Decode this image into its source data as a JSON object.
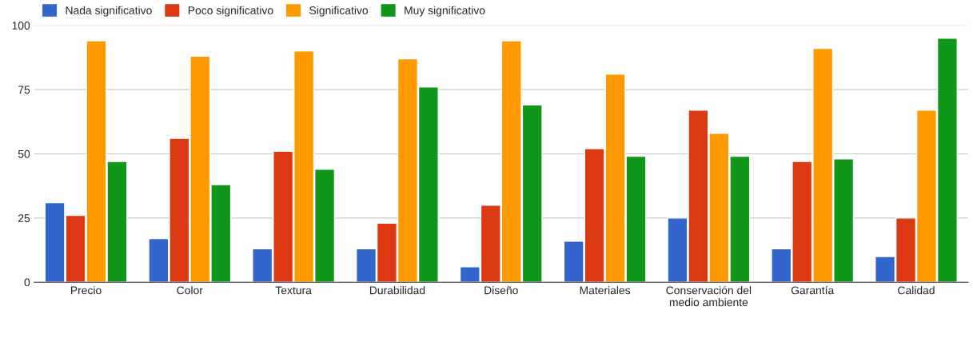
{
  "chart_data": {
    "type": "bar",
    "categories": [
      "Precio",
      "Color",
      "Textura",
      "Durabilidad",
      "Diseño",
      "Materiales",
      "Conservación del\nmedio ambiente",
      "Garantía",
      "Calidad"
    ],
    "series": [
      {
        "name": "Nada significativo",
        "color": "#3366cc",
        "values": [
          31,
          17,
          13,
          13,
          6,
          16,
          25,
          13,
          10
        ]
      },
      {
        "name": "Poco significativo",
        "color": "#dc3912",
        "values": [
          26,
          56,
          51,
          23,
          30,
          52,
          67,
          47,
          25
        ]
      },
      {
        "name": "Significativo",
        "color": "#ff9900",
        "values": [
          94,
          88,
          90,
          87,
          94,
          81,
          58,
          91,
          67
        ]
      },
      {
        "name": "Muy significativo",
        "color": "#109618",
        "values": [
          47,
          38,
          44,
          76,
          69,
          49,
          49,
          48,
          95
        ]
      }
    ],
    "ylim": [
      0,
      100
    ],
    "yticks": [
      0,
      25,
      50,
      75,
      100
    ],
    "grid": "y",
    "legend": "top left"
  }
}
